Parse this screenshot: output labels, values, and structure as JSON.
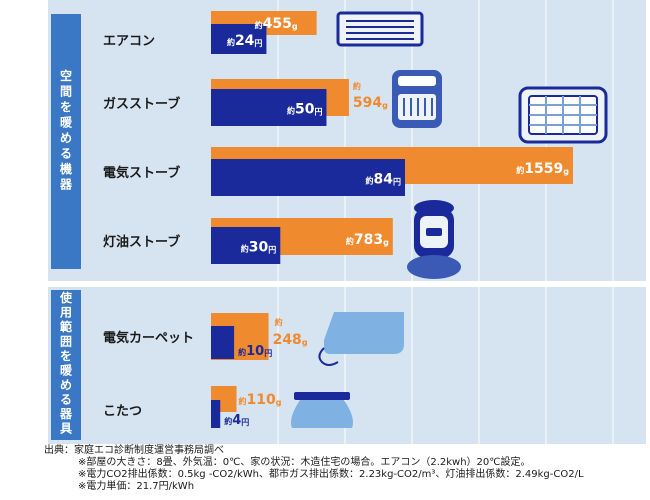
{
  "chart_data": {
    "type": "bar",
    "groups": [
      {
        "label": "空間を暖める機器",
        "categories": [
          "エアコン",
          "ガスストーブ",
          "電気ストーブ",
          "灯油ストーブ"
        ]
      },
      {
        "label": "使用範囲を暖める器具",
        "categories": [
          "電気カーペット",
          "こたつ"
        ]
      }
    ],
    "categories": [
      "エアコン",
      "ガスストーブ",
      "電気ストーブ",
      "灯油ストーブ",
      "電気カーペット",
      "こたつ"
    ],
    "series": [
      {
        "values": [
          455,
          594,
          1559,
          783,
          248,
          110
        ],
        "color": "#f08a2e",
        "prefix": "約",
        "unit": "g",
        "labels": [
          "455",
          "594",
          "1559",
          "783",
          "248",
          "110"
        ]
      },
      {
        "values": [
          24,
          50,
          84,
          30,
          10,
          4
        ],
        "color": "#1a2a9a",
        "prefix": "約",
        "unit": "円",
        "labels": [
          "24",
          "50",
          "84",
          "30",
          "10",
          "4"
        ]
      }
    ],
    "icons": [
      "air-conditioner-icon",
      "gas-stove-icon",
      "electric-stove-icon",
      "kerosene-stove-icon",
      "electric-carpet-icon",
      "kotatsu-icon"
    ],
    "grid": true,
    "colors": {
      "panel": "#d6e4f2",
      "gridline": "#ffffff",
      "sidebar": "#3a78c5",
      "orange": "#f08a2e",
      "navy": "#1a2a9a"
    }
  },
  "notes": {
    "source": "出典：家庭エコ診断制度運営事務局調べ",
    "note1": "※部屋の大きさ：8畳、外気温：0℃、家の状況：木造住宅の場合。エアコン（2.2kwh）20℃設定。",
    "note2": "※電力CO2排出係数：0.5kg -CO2/kWh、都市ガス排出係数：2.23kg-CO2/m³、灯油排出係数：2.49kg-CO2/L",
    "note3": "※電力単価：21.7円/kWh"
  }
}
